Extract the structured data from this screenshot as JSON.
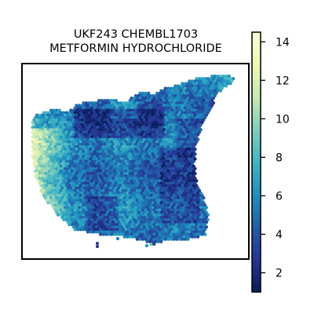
{
  "figure": {
    "title_lines": [
      "UKF243 CHEMBL1703",
      "METFORMIN HYDROCHLORIDE"
    ]
  },
  "chart_data": {
    "type": "scatter",
    "title": "UKF243 CHEMBL1703 METFORMIN HYDROCHLORIDE",
    "xlabel": "",
    "ylabel": "",
    "axes_ticks_visible": false,
    "grid": false,
    "legend": "none",
    "colormap": {
      "name": "YlGnBu_r",
      "stops": [
        "#081d58",
        "#253494",
        "#225ea8",
        "#1d91c0",
        "#41b6c4",
        "#7fcdbb",
        "#c7e9b4",
        "#edf8b1",
        "#ffffd9"
      ],
      "range": [
        1,
        14.5
      ],
      "ticks": [
        "2",
        "4",
        "6",
        "8",
        "10",
        "12",
        "14"
      ],
      "tick_values": [
        2,
        4,
        6,
        8,
        10,
        12,
        14
      ]
    },
    "value_summary": {
      "typical_range": [
        3,
        8
      ],
      "high_region": "left edge, values ~9-13",
      "low_regions": [
        "top-center band, values ~1-3",
        "right side interior, values ~1-3"
      ]
    }
  }
}
